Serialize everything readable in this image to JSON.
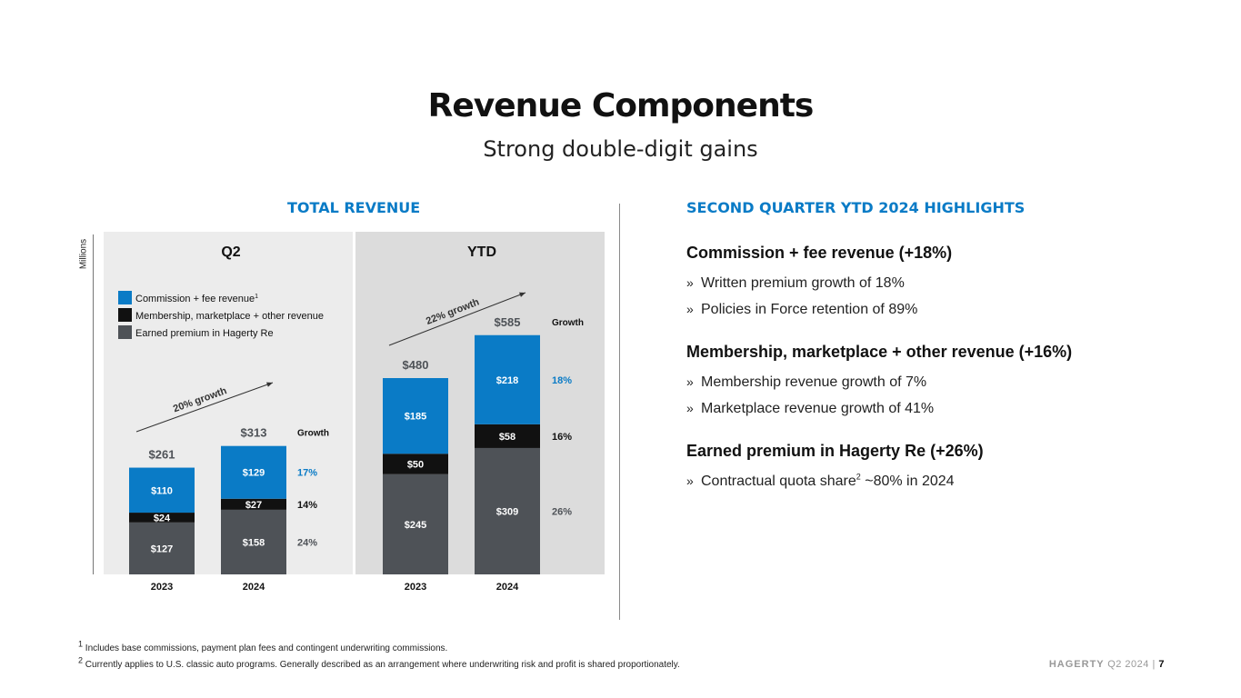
{
  "title": "Revenue Components",
  "subtitle": "Strong double-digit gains",
  "left_heading": "TOTAL REVENUE",
  "right_heading": "SECOND QUARTER YTD 2024 HIGHLIGHTS",
  "units_label": "Millions",
  "colors": {
    "commission": "#0a7bc6",
    "membership": "#111111",
    "earned": "#4e5257",
    "panel_q2": "#ececec",
    "panel_ytd": "#dcdcdc",
    "heading": "#0a7bc6"
  },
  "chart_data": {
    "type": "bar",
    "stacked": true,
    "panels": [
      {
        "label": "Q2",
        "categories": [
          "2023",
          "2024"
        ],
        "totals": [
          "$261",
          "$313"
        ],
        "series": [
          {
            "name": "Earned premium in Hagerty Re",
            "values": [
              127,
              158
            ],
            "labels": [
              "$127",
              "$158"
            ]
          },
          {
            "name": "Membership, marketplace + other revenue",
            "values": [
              24,
              27
            ],
            "labels": [
              "$24",
              "$27"
            ]
          },
          {
            "name": "Commission + fee revenue",
            "values": [
              110,
              129
            ],
            "labels": [
              "$110",
              "$129"
            ]
          }
        ],
        "growth_header": "Growth",
        "growth": {
          "commission": "17%",
          "membership": "14%",
          "earned": "24%"
        },
        "growth_arrow": "20% growth"
      },
      {
        "label": "YTD",
        "categories": [
          "2023",
          "2024"
        ],
        "totals": [
          "$480",
          "$585"
        ],
        "series": [
          {
            "name": "Earned premium in Hagerty Re",
            "values": [
              245,
              309
            ],
            "labels": [
              "$245",
              "$309"
            ]
          },
          {
            "name": "Membership, marketplace + other revenue",
            "values": [
              50,
              58
            ],
            "labels": [
              "$50",
              "$58"
            ]
          },
          {
            "name": "Commission + fee revenue",
            "values": [
              185,
              218
            ],
            "labels": [
              "$185",
              "$218"
            ]
          }
        ],
        "growth_header": "Growth",
        "growth": {
          "commission": "18%",
          "membership": "16%",
          "earned": "26%"
        },
        "growth_arrow": "22% growth"
      }
    ],
    "legend": [
      {
        "name": "Commission + fee revenue",
        "sup": "1",
        "color": "commission"
      },
      {
        "name": "Membership, marketplace + other revenue",
        "sup": "",
        "color": "membership"
      },
      {
        "name": "Earned premium in Hagerty Re",
        "sup": "",
        "color": "earned"
      }
    ],
    "legend_position": "top-left"
  },
  "highlights": [
    {
      "title": "Commission + fee revenue (+18%)",
      "items": [
        "Written premium growth of 18%",
        "Policies in Force retention of 89%"
      ]
    },
    {
      "title": "Membership, marketplace + other revenue (+16%)",
      "items": [
        "Membership revenue growth of 7%",
        "Marketplace revenue growth of 41%"
      ]
    },
    {
      "title": "Earned premium in Hagerty Re (+26%)",
      "items": []
    }
  ],
  "highlight_bullet": "»",
  "quota_item": {
    "before": "Contractual quota share",
    "sup": "2",
    "after": " ~80% in 2024"
  },
  "footnotes": [
    {
      "sup": "1",
      "text": "Includes base commissions, payment plan fees and contingent underwriting commissions."
    },
    {
      "sup": "2",
      "text": "Currently applies to U.S. classic auto programs. Generally described as an arrangement where underwriting risk and profit is shared proportionately."
    }
  ],
  "brand": {
    "name": "HAGERTY",
    "period": "Q2 2024",
    "separator": "|",
    "page": "7"
  }
}
